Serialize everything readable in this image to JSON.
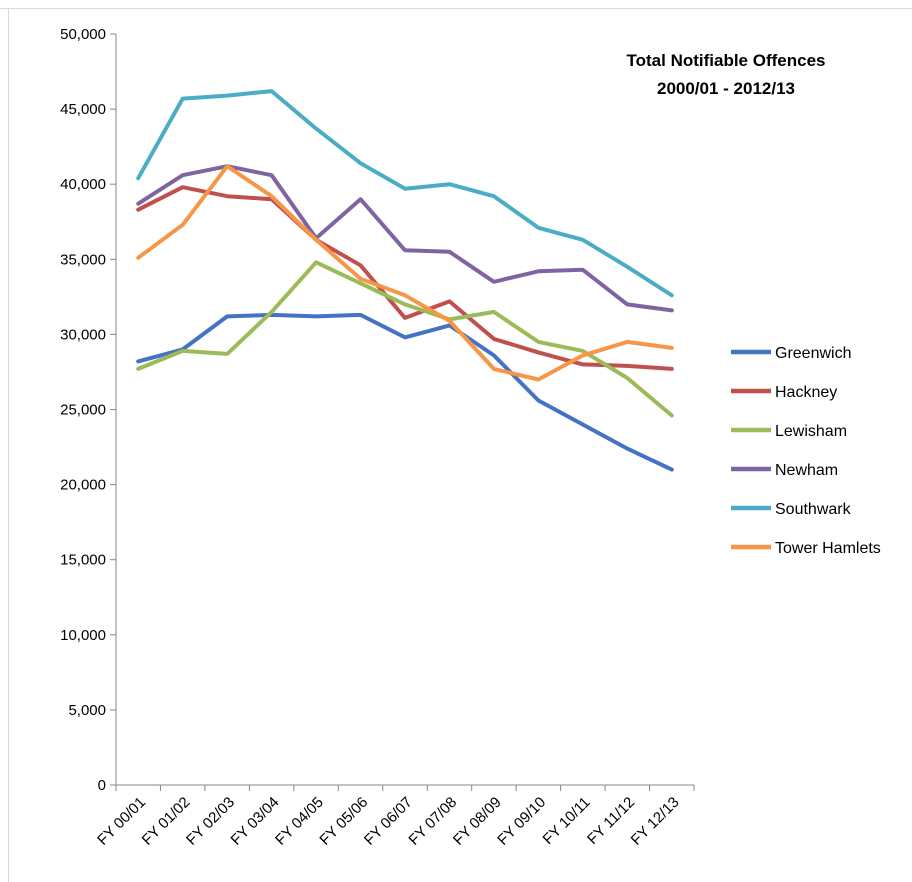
{
  "chart_data": {
    "type": "line",
    "title": "Total Notifiable Offences",
    "subtitle": "2000/01  - 2012/13",
    "xlabel": "",
    "ylabel": "",
    "ylim": [
      0,
      50000
    ],
    "yticks": [
      0,
      5000,
      10000,
      15000,
      20000,
      25000,
      30000,
      35000,
      40000,
      45000,
      50000
    ],
    "ytick_labels": [
      "0",
      "5,000",
      "10,000",
      "15,000",
      "20,000",
      "25,000",
      "30,000",
      "35,000",
      "40,000",
      "45,000",
      "50,000"
    ],
    "categories": [
      "FY 00/01",
      "FY 01/02",
      "FY 02/03",
      "FY 03/04",
      "FY 04/05",
      "FY 05/06",
      "FY 06/07",
      "FY 07/08",
      "FY 08/09",
      "FY 09/10",
      "FY 10/11",
      "FY 11/12",
      "FY 12/13"
    ],
    "grid": false,
    "legend_position": "right",
    "series": [
      {
        "name": "Greenwich",
        "color": "#4472C4",
        "values": [
          28200,
          29000,
          31200,
          31300,
          31200,
          31300,
          29800,
          30600,
          28600,
          25600,
          24000,
          22400,
          21000
        ]
      },
      {
        "name": "Hackney",
        "color": "#C0504D",
        "values": [
          38300,
          39800,
          39200,
          39000,
          36300,
          34600,
          31100,
          32200,
          29700,
          28800,
          28000,
          27900,
          27700
        ]
      },
      {
        "name": "Lewisham",
        "color": "#9BBB59",
        "values": [
          27700,
          28900,
          28700,
          31500,
          34800,
          33400,
          32000,
          31000,
          31500,
          29500,
          28900,
          27100,
          24600
        ]
      },
      {
        "name": "Newham",
        "color": "#8064A2",
        "values": [
          38700,
          40600,
          41200,
          40600,
          36400,
          39000,
          35600,
          35500,
          33500,
          34200,
          34300,
          32000,
          31600
        ]
      },
      {
        "name": "Southwark",
        "color": "#4BACC6",
        "values": [
          40400,
          45700,
          45900,
          46200,
          43700,
          41400,
          39700,
          40000,
          39200,
          37100,
          36300,
          34500,
          32600
        ]
      },
      {
        "name": "Tower Hamlets",
        "color": "#F79646",
        "values": [
          35100,
          37300,
          41200,
          39200,
          36300,
          33700,
          32600,
          30900,
          27700,
          27000,
          28600,
          29500,
          29100
        ]
      }
    ]
  }
}
